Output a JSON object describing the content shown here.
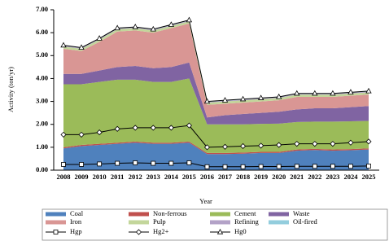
{
  "chart_data": {
    "type": "area",
    "x_label": "Year",
    "y_label": "Activity (ton/yr)",
    "categories": [
      "2008",
      "2009",
      "2010",
      "2011",
      "2012",
      "2013",
      "2014",
      "2015",
      "2016",
      "2017",
      "2018",
      "2019",
      "2020",
      "2021",
      "2022",
      "2023",
      "2024",
      "2025"
    ],
    "ylim": [
      0,
      7
    ],
    "yticks": [
      {
        "value": 0,
        "label": "0.00"
      },
      {
        "value": 1,
        "label": "1.00"
      },
      {
        "value": 2,
        "label": "2.00"
      },
      {
        "value": 3,
        "label": "3.00"
      },
      {
        "value": 4,
        "label": "4.00"
      },
      {
        "value": 5,
        "label": "5.00"
      },
      {
        "value": 6,
        "label": "6.00"
      },
      {
        "value": 7,
        "label": "7.00"
      }
    ],
    "series": [
      {
        "name": "Coal",
        "color": "#4f81bd",
        "mark": "stack",
        "values": [
          0.95,
          1.05,
          1.1,
          1.15,
          1.2,
          1.15,
          1.15,
          1.2,
          0.7,
          0.7,
          0.72,
          0.75,
          0.75,
          0.85,
          0.88,
          0.85,
          0.87,
          0.9
        ]
      },
      {
        "name": "Non-ferrous",
        "color": "#c0504d",
        "mark": "stack",
        "values": [
          0.05,
          0.05,
          0.05,
          0.05,
          0.05,
          0.05,
          0.05,
          0.05,
          0.05,
          0.05,
          0.05,
          0.05,
          0.05,
          0.05,
          0.05,
          0.05,
          0.05,
          0.05
        ]
      },
      {
        "name": "Cement",
        "color": "#9bbb59",
        "mark": "stack",
        "values": [
          2.75,
          2.65,
          2.7,
          2.75,
          2.7,
          2.65,
          2.65,
          2.75,
          1.25,
          1.25,
          1.23,
          1.22,
          1.23,
          1.2,
          1.19,
          1.22,
          1.21,
          1.2
        ]
      },
      {
        "name": "Waste",
        "color": "#8064a2",
        "mark": "stack",
        "values": [
          0.45,
          0.45,
          0.5,
          0.55,
          0.6,
          0.6,
          0.65,
          0.7,
          0.3,
          0.4,
          0.45,
          0.48,
          0.52,
          0.55,
          0.58,
          0.58,
          0.62,
          0.65
        ]
      },
      {
        "name": "Iron",
        "color": "#d99694",
        "mark": "stack",
        "values": [
          1.1,
          1.0,
          1.25,
          1.55,
          1.55,
          1.55,
          1.7,
          1.7,
          0.55,
          0.5,
          0.5,
          0.5,
          0.5,
          0.55,
          0.5,
          0.5,
          0.5,
          0.5
        ]
      },
      {
        "name": "Pulp",
        "color": "#c3d69b",
        "mark": "stack",
        "values": [
          0.1,
          0.1,
          0.1,
          0.1,
          0.1,
          0.1,
          0.1,
          0.1,
          0.1,
          0.1,
          0.1,
          0.1,
          0.1,
          0.1,
          0.1,
          0.1,
          0.1,
          0.1
        ]
      },
      {
        "name": "Refining",
        "color": "#b3a2c7",
        "mark": "stack",
        "values": [
          0.03,
          0.03,
          0.03,
          0.03,
          0.03,
          0.03,
          0.03,
          0.03,
          0.03,
          0.03,
          0.03,
          0.03,
          0.03,
          0.03,
          0.03,
          0.03,
          0.03,
          0.03
        ]
      },
      {
        "name": "Oil-fired",
        "color": "#93cddd",
        "mark": "stack",
        "values": [
          0.02,
          0.02,
          0.02,
          0.02,
          0.02,
          0.02,
          0.02,
          0.02,
          0.02,
          0.02,
          0.02,
          0.02,
          0.02,
          0.02,
          0.02,
          0.02,
          0.02,
          0.02
        ]
      },
      {
        "name": "Hgp",
        "color": "#000000",
        "mark": "line",
        "marker": "square",
        "values": [
          0.25,
          0.25,
          0.27,
          0.3,
          0.32,
          0.3,
          0.3,
          0.32,
          0.15,
          0.15,
          0.15,
          0.16,
          0.16,
          0.17,
          0.17,
          0.17,
          0.17,
          0.18
        ]
      },
      {
        "name": "Hg2+",
        "color": "#000000",
        "mark": "line",
        "marker": "diamond",
        "values": [
          1.55,
          1.55,
          1.65,
          1.8,
          1.85,
          1.85,
          1.85,
          1.95,
          1.0,
          1.02,
          1.05,
          1.07,
          1.1,
          1.15,
          1.15,
          1.15,
          1.2,
          1.25
        ]
      },
      {
        "name": "Hg0",
        "color": "#000000",
        "mark": "line",
        "marker": "triangle",
        "values": [
          5.45,
          5.35,
          5.75,
          6.2,
          6.25,
          6.15,
          6.35,
          6.55,
          3.0,
          3.05,
          3.1,
          3.15,
          3.2,
          3.35,
          3.35,
          3.35,
          3.4,
          3.45
        ]
      }
    ]
  }
}
